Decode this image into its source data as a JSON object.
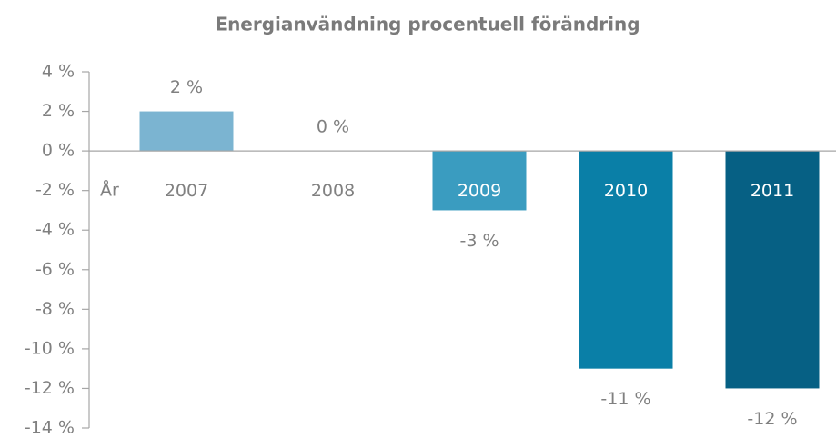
{
  "chart_data": {
    "type": "bar",
    "title": "Energianvändning procentuell förändring",
    "x_label": "År",
    "categories": [
      "2007",
      "2008",
      "2009",
      "2010",
      "2011"
    ],
    "values": [
      2,
      0,
      -3,
      -11,
      -12
    ],
    "value_labels": [
      "2 %",
      "0 %",
      "-3 %",
      "-11 %",
      "-12 %"
    ],
    "colors": [
      "#7bb4d1",
      "#5aa8c9",
      "#3a9cc0",
      "#0a7fa7",
      "#066084"
    ],
    "ylim": [
      -14,
      4
    ],
    "yticks": [
      {
        "value": -14,
        "label": "-14 %"
      },
      {
        "value": -12,
        "label": "-12 %"
      },
      {
        "value": -10,
        "label": "-10 %"
      },
      {
        "value": -8,
        "label": "-8 %"
      },
      {
        "value": -6,
        "label": "-6 %"
      },
      {
        "value": -4,
        "label": "-4 %"
      },
      {
        "value": -2,
        "label": "-2 %"
      },
      {
        "value": 0,
        "label": "0 %"
      },
      {
        "value": 2,
        "label": "2 %"
      },
      {
        "value": 4,
        "label": "4 %"
      }
    ],
    "grid": false
  }
}
